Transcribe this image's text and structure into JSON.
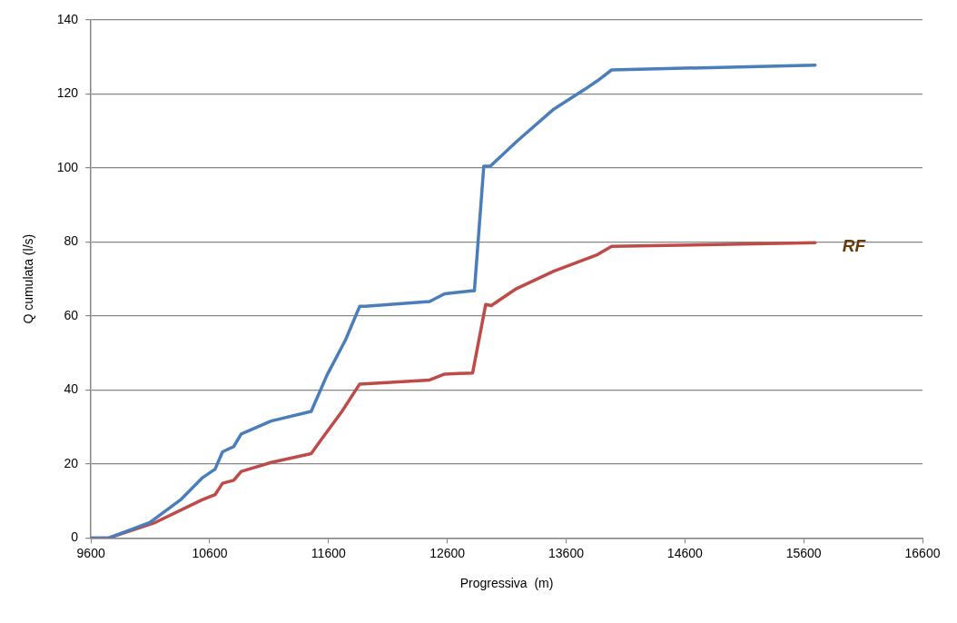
{
  "chart_data": {
    "type": "line",
    "xlabel": "Progressiva  (m)",
    "ylabel": "Q cumulata (l/s)",
    "xlim": [
      9600,
      16600
    ],
    "xticks": [
      9600,
      10600,
      11600,
      12600,
      13600,
      14600,
      15600,
      16600
    ],
    "ylim": [
      0,
      140
    ],
    "yticks": [
      0,
      20,
      40,
      60,
      80,
      100,
      120,
      140
    ],
    "grid": "y",
    "legend": false,
    "marker": "none",
    "line_style": "solid",
    "series": [
      {
        "color": "#4a7ebb",
        "x": [
          9600,
          9749,
          10095,
          10354,
          10535,
          10645,
          10708,
          10802,
          10865,
          11116,
          11454,
          11587,
          11744,
          11862,
          11909,
          12451,
          12577,
          12805,
          12828,
          12907,
          12962,
          13182,
          13496,
          13755,
          13865,
          13983,
          15696
        ],
        "values": [
          0,
          0,
          4.2,
          10.3,
          16.2,
          18.6,
          23.3,
          24.7,
          28.1,
          31.6,
          34.2,
          44,
          53.6,
          62.6,
          62.6,
          63.9,
          66,
          66.8,
          66.8,
          100.5,
          100.5,
          107.1,
          115.9,
          121.2,
          123.6,
          126.5,
          127.8
        ]
      },
      {
        "name": "RF",
        "color": "#be4b48",
        "x": [
          9600,
          9749,
          10142,
          10535,
          10645,
          10708,
          10802,
          10865,
          11116,
          11454,
          11532,
          11713,
          11862,
          12451,
          12577,
          12805,
          12813,
          12923,
          12970,
          13182,
          13496,
          13865,
          13983,
          15696
        ],
        "values": [
          0,
          0,
          4.2,
          10.3,
          11.7,
          14.8,
          15.6,
          18,
          20.4,
          22.8,
          26.3,
          34.2,
          41.6,
          42.7,
          44.3,
          44.6,
          44.6,
          63.1,
          62.8,
          67.4,
          72.1,
          76.6,
          78.8,
          79.8
        ]
      }
    ]
  }
}
